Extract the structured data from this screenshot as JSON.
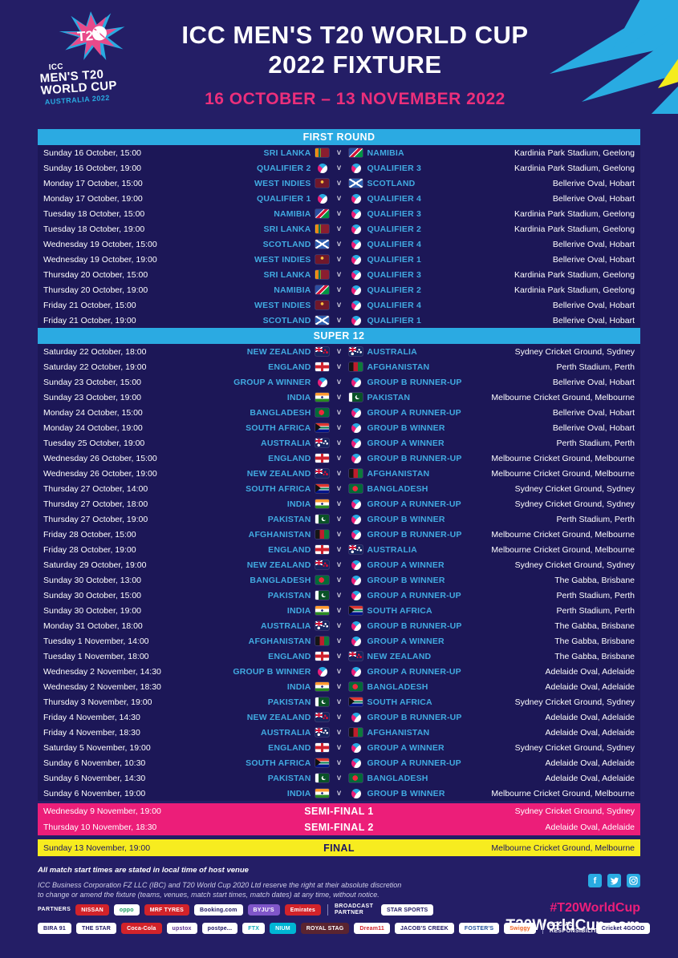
{
  "header": {
    "title_line1": "ICC MEN'S T20 WORLD CUP",
    "title_line2": "2022 FIXTURE",
    "dates": "16 OCTOBER – 13 NOVEMBER 2022",
    "logo": {
      "mark": "T20",
      "line_icc": "ICC",
      "line1": "MEN'S T20",
      "line2": "WORLD CUP",
      "sub": "AUSTRALIA 2022"
    }
  },
  "colors": {
    "background": "#241e66",
    "panel": "#1c1757",
    "section_bar": "#2baae2",
    "team_text": "#41aae1",
    "pink": "#ec1e79",
    "yellow": "#f7ec1f",
    "final_text": "#1b1464"
  },
  "sections": [
    {
      "label": "FIRST ROUND",
      "matches": [
        {
          "d": "Sunday 16 October, 15:00",
          "t1": "SRI LANKA",
          "f1": "sri-lanka",
          "t2": "NAMIBIA",
          "f2": "namibia",
          "v": "Kardinia Park Stadium, Geelong"
        },
        {
          "d": "Sunday 16 October, 19:00",
          "t1": "QUALIFIER 2",
          "f1": "t20",
          "t2": "QUALIFIER 3",
          "f2": "t20",
          "v": "Kardinia Park Stadium, Geelong"
        },
        {
          "d": "Monday 17 October, 15:00",
          "t1": "WEST INDIES",
          "f1": "west-indies",
          "t2": "SCOTLAND",
          "f2": "scotland",
          "v": "Bellerive Oval, Hobart"
        },
        {
          "d": "Monday 17 October, 19:00",
          "t1": "QUALIFIER 1",
          "f1": "t20",
          "t2": "QUALIFIER 4",
          "f2": "t20",
          "v": "Bellerive Oval, Hobart"
        },
        {
          "d": "Tuesday 18 October, 15:00",
          "t1": "NAMIBIA",
          "f1": "namibia",
          "t2": "QUALIFIER 3",
          "f2": "t20",
          "v": "Kardinia Park Stadium, Geelong"
        },
        {
          "d": "Tuesday 18 October, 19:00",
          "t1": "SRI LANKA",
          "f1": "sri-lanka",
          "t2": "QUALIFIER 2",
          "f2": "t20",
          "v": "Kardinia Park Stadium, Geelong"
        },
        {
          "d": "Wednesday 19 October, 15:00",
          "t1": "SCOTLAND",
          "f1": "scotland",
          "t2": "QUALIFIER 4",
          "f2": "t20",
          "v": "Bellerive Oval, Hobart"
        },
        {
          "d": "Wednesday 19 October, 19:00",
          "t1": "WEST INDIES",
          "f1": "west-indies",
          "t2": "QUALIFIER 1",
          "f2": "t20",
          "v": "Bellerive Oval, Hobart"
        },
        {
          "d": "Thursday 20 October, 15:00",
          "t1": "SRI LANKA",
          "f1": "sri-lanka",
          "t2": "QUALIFIER 3",
          "f2": "t20",
          "v": "Kardinia Park Stadium, Geelong"
        },
        {
          "d": "Thursday 20 October, 19:00",
          "t1": "NAMIBIA",
          "f1": "namibia",
          "t2": "QUALIFIER 2",
          "f2": "t20",
          "v": "Kardinia Park Stadium, Geelong"
        },
        {
          "d": "Friday 21 October, 15:00",
          "t1": "WEST INDIES",
          "f1": "west-indies",
          "t2": "QUALIFIER 4",
          "f2": "t20",
          "v": "Bellerive Oval, Hobart"
        },
        {
          "d": "Friday 21 October, 19:00",
          "t1": "SCOTLAND",
          "f1": "scotland",
          "t2": "QUALIFIER 1",
          "f2": "t20",
          "v": "Bellerive Oval, Hobart"
        }
      ]
    },
    {
      "label": "SUPER 12",
      "matches": [
        {
          "d": "Saturday 22 October, 18:00",
          "t1": "NEW ZEALAND",
          "f1": "new-zealand",
          "t2": "AUSTRALIA",
          "f2": "australia",
          "v": "Sydney Cricket Ground, Sydney"
        },
        {
          "d": "Saturday 22 October, 19:00",
          "t1": "ENGLAND",
          "f1": "england",
          "t2": "AFGHANISTAN",
          "f2": "afghanistan",
          "v": "Perth Stadium, Perth"
        },
        {
          "d": "Sunday 23 October, 15:00",
          "t1": "GROUP A WINNER",
          "f1": "t20",
          "t2": "GROUP B RUNNER-UP",
          "f2": "t20",
          "v": "Bellerive Oval, Hobart"
        },
        {
          "d": "Sunday 23 October, 19:00",
          "t1": "INDIA",
          "f1": "india",
          "t2": "PAKISTAN",
          "f2": "pakistan",
          "v": "Melbourne Cricket Ground, Melbourne"
        },
        {
          "d": "Monday 24 October, 15:00",
          "t1": "BANGLADESH",
          "f1": "bangladesh",
          "t2": "GROUP A RUNNER-UP",
          "f2": "t20",
          "v": "Bellerive Oval, Hobart"
        },
        {
          "d": "Monday 24 October, 19:00",
          "t1": "SOUTH AFRICA",
          "f1": "south-africa",
          "t2": "GROUP B WINNER",
          "f2": "t20",
          "v": "Bellerive Oval, Hobart"
        },
        {
          "d": "Tuesday 25 October, 19:00",
          "t1": "AUSTRALIA",
          "f1": "australia",
          "t2": "GROUP A WINNER",
          "f2": "t20",
          "v": "Perth Stadium, Perth"
        },
        {
          "d": "Wednesday 26 October, 15:00",
          "t1": "ENGLAND",
          "f1": "england",
          "t2": "GROUP B RUNNER-UP",
          "f2": "t20",
          "v": "Melbourne Cricket Ground, Melbourne"
        },
        {
          "d": "Wednesday 26 October, 19:00",
          "t1": "NEW ZEALAND",
          "f1": "new-zealand",
          "t2": "AFGHANISTAN",
          "f2": "afghanistan",
          "v": "Melbourne Cricket Ground, Melbourne"
        },
        {
          "d": "Thursday 27 October, 14:00",
          "t1": "SOUTH AFRICA",
          "f1": "south-africa",
          "t2": "BANGLADESH",
          "f2": "bangladesh",
          "v": "Sydney Cricket Ground, Sydney"
        },
        {
          "d": "Thursday 27 October, 18:00",
          "t1": "INDIA",
          "f1": "india",
          "t2": "GROUP A RUNNER-UP",
          "f2": "t20",
          "v": "Sydney Cricket Ground, Sydney"
        },
        {
          "d": "Thursday 27 October, 19:00",
          "t1": "PAKISTAN",
          "f1": "pakistan",
          "t2": "GROUP B WINNER",
          "f2": "t20",
          "v": "Perth Stadium, Perth"
        },
        {
          "d": "Friday 28 October, 15:00",
          "t1": "AFGHANISTAN",
          "f1": "afghanistan",
          "t2": "GROUP B RUNNER-UP",
          "f2": "t20",
          "v": "Melbourne Cricket Ground, Melbourne"
        },
        {
          "d": "Friday 28 October, 19:00",
          "t1": "ENGLAND",
          "f1": "england",
          "t2": "AUSTRALIA",
          "f2": "australia",
          "v": "Melbourne Cricket Ground, Melbourne"
        },
        {
          "d": "Saturday 29 October, 19:00",
          "t1": "NEW ZEALAND",
          "f1": "new-zealand",
          "t2": "GROUP A WINNER",
          "f2": "t20",
          "v": "Sydney Cricket Ground, Sydney"
        },
        {
          "d": "Sunday 30 October, 13:00",
          "t1": "BANGLADESH",
          "f1": "bangladesh",
          "t2": "GROUP B WINNER",
          "f2": "t20",
          "v": "The Gabba, Brisbane"
        },
        {
          "d": "Sunday 30 October, 15:00",
          "t1": "PAKISTAN",
          "f1": "pakistan",
          "t2": "GROUP A RUNNER-UP",
          "f2": "t20",
          "v": "Perth Stadium, Perth"
        },
        {
          "d": "Sunday 30 October, 19:00",
          "t1": "INDIA",
          "f1": "india",
          "t2": "SOUTH AFRICA",
          "f2": "south-africa",
          "v": "Perth Stadium, Perth"
        },
        {
          "d": "Monday 31 October, 18:00",
          "t1": "AUSTRALIA",
          "f1": "australia",
          "t2": "GROUP B RUNNER-UP",
          "f2": "t20",
          "v": "The Gabba, Brisbane"
        },
        {
          "d": "Tuesday 1 November, 14:00",
          "t1": "AFGHANISTAN",
          "f1": "afghanistan",
          "t2": "GROUP A WINNER",
          "f2": "t20",
          "v": "The Gabba, Brisbane"
        },
        {
          "d": "Tuesday 1 November, 18:00",
          "t1": "ENGLAND",
          "f1": "england",
          "t2": "NEW ZEALAND",
          "f2": "new-zealand",
          "v": "The Gabba, Brisbane"
        },
        {
          "d": "Wednesday 2 November, 14:30",
          "t1": "GROUP B WINNER",
          "f1": "t20",
          "t2": "GROUP A RUNNER-UP",
          "f2": "t20",
          "v": "Adelaide Oval, Adelaide"
        },
        {
          "d": "Wednesday 2 November, 18:30",
          "t1": "INDIA",
          "f1": "india",
          "t2": "BANGLADESH",
          "f2": "bangladesh",
          "v": "Adelaide Oval, Adelaide"
        },
        {
          "d": "Thursday 3 November, 19:00",
          "t1": "PAKISTAN",
          "f1": "pakistan",
          "t2": "SOUTH AFRICA",
          "f2": "south-africa",
          "v": "Sydney Cricket Ground, Sydney"
        },
        {
          "d": "Friday 4 November, 14:30",
          "t1": "NEW ZEALAND",
          "f1": "new-zealand",
          "t2": "GROUP B RUNNER-UP",
          "f2": "t20",
          "v": "Adelaide Oval, Adelaide"
        },
        {
          "d": "Friday 4 November, 18:30",
          "t1": "AUSTRALIA",
          "f1": "australia",
          "t2": "AFGHANISTAN",
          "f2": "afghanistan",
          "v": "Adelaide Oval, Adelaide"
        },
        {
          "d": "Saturday 5 November, 19:00",
          "t1": "ENGLAND",
          "f1": "england",
          "t2": "GROUP A WINNER",
          "f2": "t20",
          "v": "Sydney Cricket Ground, Sydney"
        },
        {
          "d": "Sunday 6 November, 10:30",
          "t1": "SOUTH AFRICA",
          "f1": "south-africa",
          "t2": "GROUP A RUNNER-UP",
          "f2": "t20",
          "v": "Adelaide Oval, Adelaide"
        },
        {
          "d": "Sunday 6 November, 14:30",
          "t1": "PAKISTAN",
          "f1": "pakistan",
          "t2": "BANGLADESH",
          "f2": "bangladesh",
          "v": "Adelaide Oval, Adelaide"
        },
        {
          "d": "Sunday 6 November, 19:00",
          "t1": "INDIA",
          "f1": "india",
          "t2": "GROUP B WINNER",
          "f2": "t20",
          "v": "Melbourne Cricket Ground, Melbourne"
        }
      ]
    }
  ],
  "knockout": [
    {
      "d": "Wednesday 9 November, 19:00",
      "label": "SEMI-FINAL 1",
      "v": "Sydney Cricket Ground, Sydney",
      "style": "pink"
    },
    {
      "d": "Thursday 10 November, 18:30",
      "label": "SEMI-FINAL 2",
      "v": "Adelaide Oval, Adelaide",
      "style": "pink"
    },
    {
      "d": "Sunday 13 November, 19:00",
      "label": "FINAL",
      "v": "Melbourne Cricket Ground, Melbourne",
      "style": "yellow"
    }
  ],
  "versus_label": "v",
  "footer": {
    "note": "All match start times are stated in local time of host venue",
    "legal_line1": "ICC Business Corporation FZ LLC (IBC) and T20 World Cup 2020 Ltd reserve the right at their absolute discretion",
    "legal_line2": "to change or amend the fixture (teams, venues, match start times, match dates) at any time, without notice.",
    "partners_label": "PARTNERS",
    "partners_row1": [
      {
        "label": "NISSAN",
        "style": "red"
      },
      {
        "label": "oppo",
        "style": "white-green"
      },
      {
        "label": "MRF TYRES",
        "style": "red"
      },
      {
        "label": "Booking.com",
        "style": "white-navy"
      },
      {
        "label": "BYJU'S",
        "style": "purple"
      },
      {
        "label": "Emirates",
        "style": "red"
      }
    ],
    "broadcast_label": "BROADCAST PARTNER",
    "broadcast_badge": {
      "label": "STAR SPORTS",
      "style": "white-navy"
    },
    "partners_row2": [
      {
        "label": "BIRA 91",
        "style": "white-navy"
      },
      {
        "label": "THE STAR",
        "style": "white-navy"
      },
      {
        "label": "Coca-Cola",
        "style": "red"
      },
      {
        "label": "upstox",
        "style": "white-purple"
      },
      {
        "label": "postpe...",
        "style": "white-navy"
      },
      {
        "label": "FTX",
        "style": "white-teal"
      },
      {
        "label": "NIUM",
        "style": "cyan"
      },
      {
        "label": "ROYAL STAG",
        "style": "dark"
      },
      {
        "label": "Dream11",
        "style": "white-red"
      },
      {
        "label": "JACOB'S CREEK",
        "style": "white-navy"
      },
      {
        "label": "FOSTER'S",
        "style": "white-blue"
      },
      {
        "label": "Swiggy",
        "style": "white-orange"
      }
    ],
    "social_responsibility_label": "SOCIAL RESPONSIBILITY",
    "social_responsibility_badge": {
      "label": "Cricket 4GOOD",
      "style": "white-navy"
    },
    "socials": [
      "facebook",
      "twitter",
      "instagram"
    ],
    "hashtag": "#T20WorldCup",
    "website": "T20WorldCup.com"
  }
}
